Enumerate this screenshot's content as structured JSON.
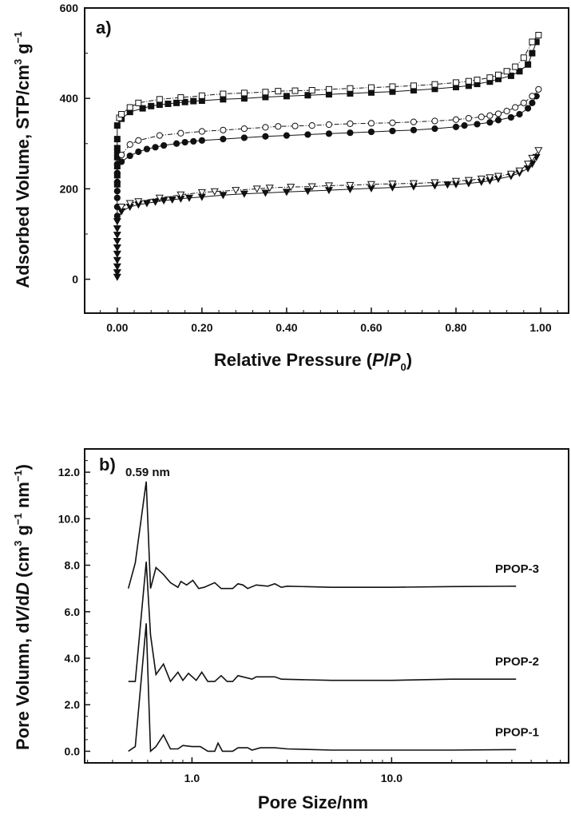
{
  "chart_data": [
    {
      "type": "scatter",
      "panel_label": "a)",
      "xlabel_parts": [
        "Relative Pressure (",
        "P",
        "/",
        "P",
        "0",
        ")"
      ],
      "ylabel_parts": [
        "Adsorbed Volume, STP/cm",
        "3",
        " g",
        "−1"
      ],
      "xlim": [
        -0.077,
        1.066
      ],
      "ylim": [
        -75,
        600
      ],
      "xticks": [
        0,
        0.2,
        0.4,
        0.6,
        0.8,
        1.0
      ],
      "xtick_labels": [
        "0.00",
        "0.20",
        "0.40",
        "0.60",
        "0.80",
        "1.00"
      ],
      "yticks": [
        0,
        200,
        400,
        600
      ],
      "ytick_labels": [
        "0",
        "200",
        "400",
        "600"
      ],
      "series": [
        {
          "name": "square-adsorption",
          "marker": "square",
          "filled": true,
          "x": [
            0,
            0,
            0,
            0,
            0,
            0,
            0,
            0.01,
            0.03,
            0.06,
            0.08,
            0.1,
            0.12,
            0.14,
            0.16,
            0.18,
            0.2,
            0.25,
            0.3,
            0.35,
            0.4,
            0.45,
            0.5,
            0.55,
            0.6,
            0.65,
            0.7,
            0.75,
            0.8,
            0.83,
            0.85,
            0.88,
            0.9,
            0.93,
            0.95,
            0.97,
            0.98,
            0.99
          ],
          "y": [
            210,
            230,
            250,
            270,
            290,
            310,
            340,
            355,
            370,
            378,
            383,
            386,
            388,
            390,
            392,
            394,
            395,
            398,
            400,
            403,
            405,
            407,
            409,
            411,
            413,
            415,
            418,
            421,
            425,
            428,
            432,
            437,
            443,
            450,
            460,
            475,
            500,
            525
          ]
        },
        {
          "name": "square-desorption",
          "marker": "square",
          "filled": false,
          "x": [
            0.005,
            0.01,
            0.03,
            0.05,
            0.1,
            0.15,
            0.2,
            0.25,
            0.3,
            0.35,
            0.38,
            0.42,
            0.46,
            0.5,
            0.55,
            0.6,
            0.65,
            0.7,
            0.75,
            0.8,
            0.83,
            0.85,
            0.88,
            0.9,
            0.92,
            0.94,
            0.96,
            0.98,
            0.995
          ],
          "y": [
            357,
            365,
            380,
            390,
            398,
            402,
            406,
            410,
            412,
            414,
            416,
            417,
            418,
            420,
            422,
            424,
            426,
            428,
            431,
            435,
            438,
            441,
            446,
            452,
            460,
            470,
            490,
            525,
            540
          ]
        },
        {
          "name": "circle-adsorption",
          "marker": "circle",
          "filled": true,
          "x": [
            0,
            0,
            0,
            0,
            0,
            0,
            0,
            0,
            0.01,
            0.03,
            0.05,
            0.07,
            0.09,
            0.11,
            0.14,
            0.16,
            0.18,
            0.2,
            0.25,
            0.3,
            0.35,
            0.4,
            0.45,
            0.5,
            0.55,
            0.6,
            0.65,
            0.7,
            0.75,
            0.8,
            0.82,
            0.85,
            0.88,
            0.9,
            0.93,
            0.95,
            0.97,
            0.98,
            0.99
          ],
          "y": [
            140,
            160,
            180,
            195,
            215,
            235,
            255,
            280,
            260,
            273,
            282,
            288,
            292,
            296,
            300,
            303,
            305,
            307,
            310,
            313,
            316,
            318,
            320,
            322,
            324,
            326,
            328,
            330,
            333,
            337,
            340,
            343,
            347,
            352,
            358,
            365,
            378,
            390,
            405
          ]
        },
        {
          "name": "circle-desorption",
          "marker": "circle",
          "filled": false,
          "x": [
            0.01,
            0.03,
            0.05,
            0.1,
            0.15,
            0.2,
            0.25,
            0.3,
            0.35,
            0.38,
            0.42,
            0.46,
            0.5,
            0.55,
            0.6,
            0.65,
            0.7,
            0.75,
            0.8,
            0.83,
            0.86,
            0.88,
            0.9,
            0.92,
            0.94,
            0.96,
            0.98,
            0.995
          ],
          "y": [
            275,
            298,
            307,
            318,
            323,
            327,
            330,
            333,
            336,
            338,
            339,
            340,
            342,
            344,
            345,
            346,
            348,
            350,
            353,
            356,
            359,
            362,
            366,
            372,
            380,
            390,
            405,
            420
          ]
        },
        {
          "name": "triangle-adsorption",
          "marker": "triangle",
          "filled": true,
          "x": [
            0,
            0,
            0,
            0,
            0,
            0,
            0,
            0,
            0,
            0,
            0.01,
            0.03,
            0.05,
            0.07,
            0.09,
            0.11,
            0.13,
            0.15,
            0.17,
            0.2,
            0.25,
            0.3,
            0.35,
            0.4,
            0.45,
            0.5,
            0.55,
            0.6,
            0.65,
            0.7,
            0.75,
            0.78,
            0.8,
            0.83,
            0.86,
            0.88,
            0.9,
            0.93,
            0.95,
            0.97,
            0.98,
            0.99
          ],
          "y": [
            5,
            15,
            28,
            42,
            56,
            70,
            84,
            98,
            112,
            128,
            150,
            160,
            165,
            168,
            171,
            174,
            176,
            178,
            180,
            182,
            186,
            189,
            191,
            193,
            195,
            197,
            199,
            201,
            203,
            205,
            207,
            209,
            210,
            212,
            215,
            218,
            222,
            228,
            235,
            245,
            255,
            270
          ]
        },
        {
          "name": "triangle-desorption",
          "marker": "triangle",
          "filled": false,
          "x": [
            0.01,
            0.03,
            0.05,
            0.1,
            0.15,
            0.2,
            0.23,
            0.28,
            0.33,
            0.36,
            0.41,
            0.46,
            0.5,
            0.55,
            0.6,
            0.65,
            0.7,
            0.75,
            0.8,
            0.83,
            0.86,
            0.88,
            0.9,
            0.93,
            0.95,
            0.97,
            0.98,
            0.995
          ],
          "y": [
            160,
            168,
            172,
            180,
            187,
            192,
            194,
            197,
            200,
            202,
            204,
            205,
            207,
            208,
            210,
            211,
            212,
            214,
            217,
            219,
            222,
            225,
            228,
            233,
            240,
            255,
            268,
            285
          ]
        }
      ]
    },
    {
      "type": "line",
      "panel_label": "b)",
      "annotation": "0.59 nm",
      "xlabel": "Pore Size/nm",
      "ylabel_parts": [
        "Pore Volumn, d",
        "V",
        "/d",
        "D",
        " (cm",
        "3",
        " g",
        "−1",
        " nm",
        "−1",
        ")"
      ],
      "xscale": "log",
      "xlim": [
        0.29,
        77
      ],
      "ylim": [
        -0.5,
        13.0
      ],
      "xticks": [
        1,
        10
      ],
      "xtick_labels": [
        "1.0",
        "10.0"
      ],
      "yticks": [
        0,
        2,
        4,
        6,
        8,
        10,
        12
      ],
      "ytick_labels": [
        "0.0",
        "2.0",
        "4.0",
        "6.0",
        "8.0",
        "10.0",
        "12.0"
      ],
      "series": [
        {
          "name": "PPOP-3",
          "x": [
            0.48,
            0.52,
            0.59,
            0.62,
            0.66,
            0.72,
            0.78,
            0.85,
            0.88,
            0.94,
            1.01,
            1.08,
            1.15,
            1.3,
            1.4,
            1.6,
            1.7,
            1.8,
            1.9,
            2.1,
            2.4,
            2.6,
            2.8,
            3,
            5,
            10,
            20,
            42
          ],
          "y": [
            7.0,
            8.1,
            11.6,
            7.0,
            7.9,
            7.6,
            7.25,
            7.05,
            7.3,
            7.15,
            7.35,
            7.0,
            7.05,
            7.25,
            7.0,
            7.0,
            7.2,
            7.15,
            7.0,
            7.15,
            7.1,
            7.2,
            7.05,
            7.1,
            7.05,
            7.05,
            7.08,
            7.1
          ]
        },
        {
          "name": "PPOP-2",
          "x": [
            0.48,
            0.52,
            0.59,
            0.62,
            0.66,
            0.72,
            0.78,
            0.85,
            0.9,
            0.96,
            1.05,
            1.12,
            1.2,
            1.3,
            1.4,
            1.5,
            1.6,
            1.7,
            1.8,
            2,
            2.1,
            2.6,
            2.8,
            5,
            10,
            20,
            42
          ],
          "y": [
            3.0,
            3.0,
            8.15,
            5.0,
            3.3,
            3.75,
            3.0,
            3.4,
            3.05,
            3.35,
            3.05,
            3.4,
            3.0,
            3.0,
            3.25,
            3.0,
            3.0,
            3.25,
            3.2,
            3.1,
            3.2,
            3.2,
            3.1,
            3.05,
            3.05,
            3.1,
            3.1
          ]
        },
        {
          "name": "PPOP-1",
          "x": [
            0.48,
            0.52,
            0.59,
            0.62,
            0.66,
            0.72,
            0.78,
            0.85,
            0.9,
            1.0,
            1.1,
            1.2,
            1.3,
            1.35,
            1.42,
            1.6,
            1.7,
            1.9,
            2,
            2.2,
            2.6,
            3,
            5,
            10,
            20,
            42
          ],
          "y": [
            0.0,
            0.2,
            5.5,
            0.0,
            0.2,
            0.7,
            0.1,
            0.1,
            0.25,
            0.2,
            0.2,
            0.0,
            0.0,
            0.35,
            0.0,
            0.0,
            0.15,
            0.15,
            0.05,
            0.15,
            0.15,
            0.1,
            0.05,
            0.05,
            0.05,
            0.07
          ]
        }
      ]
    }
  ]
}
